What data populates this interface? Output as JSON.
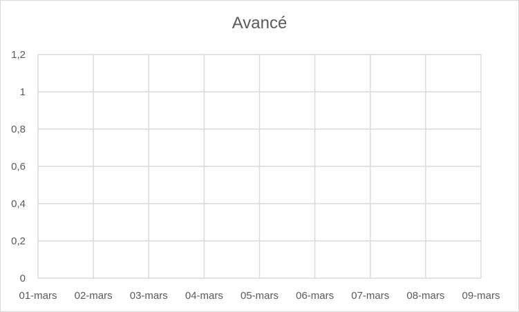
{
  "chart_data": {
    "type": "line",
    "title": "Avancé",
    "xlabel": "",
    "ylabel": "",
    "categories": [
      "01-mars",
      "02-mars",
      "03-mars",
      "04-mars",
      "05-mars",
      "06-mars",
      "07-mars",
      "08-mars",
      "09-mars"
    ],
    "y_ticks": [
      "0",
      "0,2",
      "0,4",
      "0,6",
      "0,8",
      "1",
      "1,2"
    ],
    "ylim": [
      0,
      1.2
    ],
    "series": [],
    "grid": true,
    "legend": "none",
    "colors": {
      "gridline": "#d9d9d9",
      "text": "#595959",
      "border": "#d9d9d9"
    }
  }
}
